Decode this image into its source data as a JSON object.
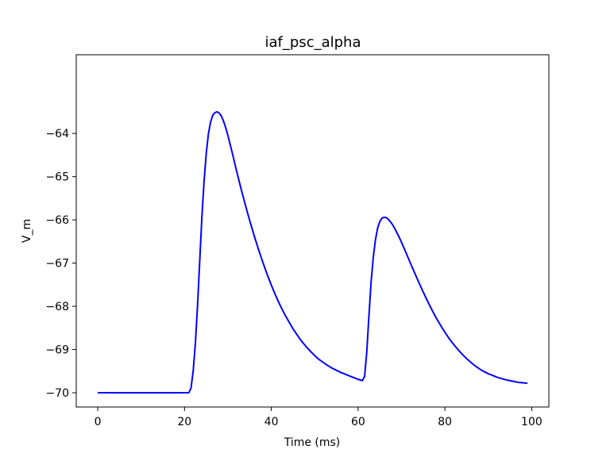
{
  "chart_data": {
    "type": "line",
    "title": "iaf_psc_alpha",
    "xlabel": "Time (ms)",
    "ylabel": "V_m",
    "xlim": [
      -4.95,
      103.95
    ],
    "ylim": [
      -70.33,
      -62.18
    ],
    "xticks": [
      0,
      20,
      40,
      60,
      80,
      100
    ],
    "xtick_labels": [
      "0",
      "20",
      "40",
      "60",
      "80",
      "100"
    ],
    "yticks": [
      -70,
      -69,
      -68,
      -67,
      -66,
      -65,
      -64
    ],
    "ytick_labels": [
      "−70",
      "−69",
      "−68",
      "−67",
      "−66",
      "−65",
      "−64"
    ],
    "grid": false,
    "legend": "none",
    "series": [
      {
        "color": "#0000ff",
        "x": [
          0,
          10,
          20,
          21,
          21.5,
          22,
          22.5,
          23,
          23.5,
          24,
          24.5,
          25,
          25.5,
          26,
          26.5,
          27,
          27.5,
          28,
          28.5,
          29,
          29.5,
          30,
          31,
          32,
          33,
          34,
          35,
          36,
          37,
          38,
          39,
          40,
          41,
          42,
          43,
          44,
          45,
          46,
          47,
          48,
          49,
          50,
          51,
          52,
          53,
          54,
          55,
          56,
          57,
          58,
          59,
          60,
          61,
          61.5,
          62,
          62.5,
          63,
          63.5,
          64,
          64.5,
          65,
          65.5,
          66,
          66.5,
          67,
          67.5,
          68,
          68.5,
          69,
          69.5,
          70,
          71,
          72,
          73,
          74,
          75,
          76,
          77,
          78,
          79,
          80,
          81,
          82,
          83,
          84,
          85,
          86,
          87,
          88,
          89,
          90,
          91,
          92,
          93,
          94,
          95,
          96,
          97,
          98,
          99
        ],
        "y": [
          -70,
          -70,
          -70,
          -70,
          -69.89,
          -69.49,
          -68.86,
          -67.98,
          -66.96,
          -65.94,
          -65.11,
          -64.47,
          -64.01,
          -63.74,
          -63.58,
          -63.52,
          -63.5,
          -63.53,
          -63.6,
          -63.72,
          -63.87,
          -64.05,
          -64.45,
          -64.87,
          -65.27,
          -65.65,
          -66.01,
          -66.35,
          -66.67,
          -66.97,
          -67.25,
          -67.51,
          -67.75,
          -67.97,
          -68.17,
          -68.35,
          -68.52,
          -68.67,
          -68.81,
          -68.93,
          -69.04,
          -69.14,
          -69.23,
          -69.3,
          -69.37,
          -69.43,
          -69.48,
          -69.53,
          -69.57,
          -69.61,
          -69.65,
          -69.69,
          -69.72,
          -69.62,
          -69.05,
          -68.21,
          -67.43,
          -66.86,
          -66.46,
          -66.19,
          -66.04,
          -65.96,
          -65.94,
          -65.95,
          -65.99,
          -66.05,
          -66.12,
          -66.21,
          -66.31,
          -66.41,
          -66.52,
          -66.75,
          -66.99,
          -67.22,
          -67.45,
          -67.67,
          -67.88,
          -68.08,
          -68.27,
          -68.44,
          -68.6,
          -68.75,
          -68.88,
          -69.0,
          -69.11,
          -69.21,
          -69.3,
          -69.38,
          -69.45,
          -69.51,
          -69.56,
          -69.6,
          -69.64,
          -69.67,
          -69.7,
          -69.72,
          -69.74,
          -69.76,
          -69.77,
          -69.78
        ]
      }
    ]
  }
}
